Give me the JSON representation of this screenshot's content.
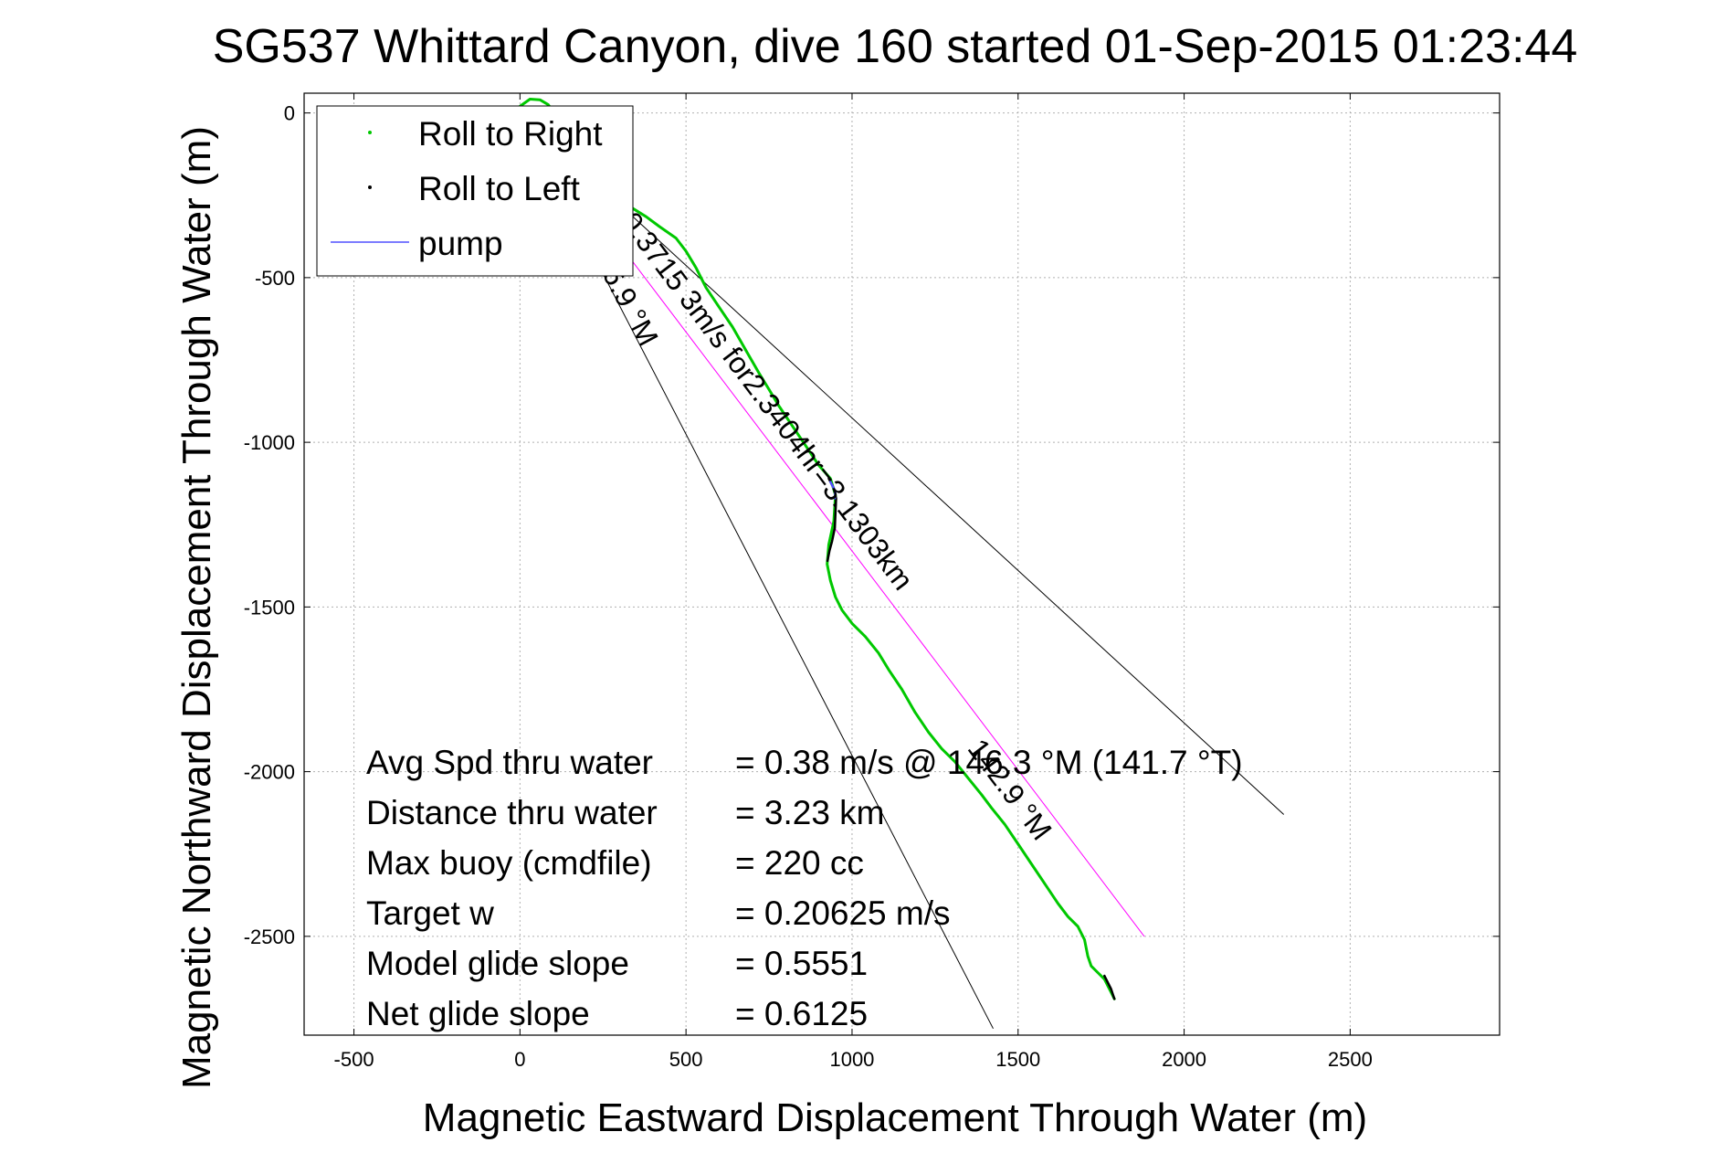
{
  "chart_data": {
    "type": "line",
    "title": "SG537 Whittard Canyon, dive 160 started 01-Sep-2015 01:23:44",
    "xlabel": "Magnetic Eastward Displacement Through Water (m)",
    "ylabel": "Magnetic Northward Displacement Through Water (m)",
    "xlim": [
      -650,
      2950
    ],
    "ylim": [
      -2800,
      60
    ],
    "xticks": [
      -500,
      0,
      500,
      1000,
      1500,
      2000,
      2500
    ],
    "yticks": [
      0,
      -500,
      -1000,
      -1500,
      -2000,
      -2500
    ],
    "grid": true,
    "legend": {
      "placement": "top-left",
      "entries": [
        {
          "label": "Roll to Right",
          "color": "#00c800"
        },
        {
          "label": "Roll to Left",
          "color": "#000000"
        },
        {
          "label": "pump",
          "color": "#5050ff"
        }
      ]
    },
    "series": [
      {
        "name": "Roll to Right",
        "color": "#00c800",
        "x": [
          0,
          30,
          60,
          85,
          100,
          110,
          125,
          145,
          165,
          180,
          200,
          230,
          260,
          300,
          340,
          380,
          420,
          470,
          500,
          530,
          560,
          600,
          640,
          680,
          720,
          750,
          780,
          820,
          860,
          900,
          935,
          950,
          945,
          930,
          925,
          935,
          950,
          970,
          1000,
          1040,
          1080,
          1110,
          1150,
          1190,
          1230,
          1270,
          1310,
          1350,
          1390,
          1420,
          1460,
          1500,
          1540,
          1580,
          1620,
          1650,
          1680,
          1700,
          1710,
          1720,
          1740,
          1760,
          1780,
          1790
        ],
        "y": [
          20,
          42,
          40,
          25,
          5,
          -30,
          -70,
          -110,
          -140,
          -165,
          -190,
          -215,
          -240,
          -265,
          -290,
          -315,
          -345,
          -380,
          -420,
          -470,
          -530,
          -590,
          -650,
          -720,
          -790,
          -840,
          -890,
          -950,
          -1010,
          -1070,
          -1110,
          -1160,
          -1240,
          -1310,
          -1370,
          -1420,
          -1470,
          -1510,
          -1550,
          -1590,
          -1640,
          -1690,
          -1750,
          -1820,
          -1880,
          -1930,
          -1970,
          -2020,
          -2070,
          -2110,
          -2160,
          -2220,
          -2280,
          -2340,
          -2400,
          -2440,
          -2470,
          -2510,
          -2560,
          -2590,
          -2610,
          -2630,
          -2670,
          -2690
        ]
      },
      {
        "name": "Roll to Left",
        "color": "#000000",
        "x": [
          930,
          945,
          952,
          948,
          940,
          932,
          926,
          1760,
          1780,
          1790
        ],
        "y": [
          -1110,
          -1140,
          -1170,
          -1260,
          -1300,
          -1330,
          -1360,
          -2620,
          -2660,
          -2690
        ],
        "segments": [
          [
            0,
            7
          ],
          [
            7,
            10
          ]
        ]
      },
      {
        "name": "pump",
        "color": "#5050ff",
        "x": [
          935,
          950,
          948
        ],
        "y": [
          -1120,
          -1150,
          -1170
        ]
      }
    ],
    "reference_lines": [
      {
        "color": "#000000",
        "x": [
          0,
          2300
        ],
        "y": [
          0,
          -2130
        ]
      },
      {
        "color": "#000000",
        "x": [
          0,
          1425
        ],
        "y": [
          0,
          -2780
        ]
      },
      {
        "color": "#ff00ff",
        "x": [
          0,
          1880
        ],
        "y": [
          0,
          -2500
        ]
      }
    ],
    "annotations": [
      {
        "text": "0.3715 3m/s for2.3404hr=3.1303km",
        "x": 300,
        "y": -330,
        "angle_deg": 53,
        "label": "0.3715 3m/s for2.3404hr=3.1303km"
      },
      {
        "text": "142.9 °M",
        "x": 1345,
        "y": -1930,
        "angle_deg": 53
      },
      {
        "text": "156.9 °M",
        "x": 200,
        "y": -400,
        "angle_deg": 62
      }
    ],
    "stats": [
      {
        "label": "Avg Spd thru water",
        "value": "=  0.38 m/s @ 146.3 °M (141.7 °T)"
      },
      {
        "label": "Distance thru water",
        "value": "=  3.23 km"
      },
      {
        "label": "Max buoy (cmdfile)",
        "value": "= 220 cc"
      },
      {
        "label": "Target w",
        "value": "= 0.20625 m/s"
      },
      {
        "label": "Model glide slope",
        "value": "= 0.5551"
      },
      {
        "label": "Net glide slope",
        "value": "= 0.6125"
      }
    ]
  }
}
